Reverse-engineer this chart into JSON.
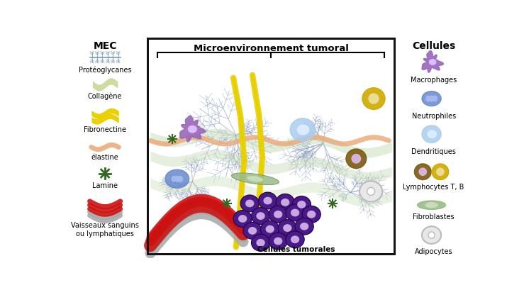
{
  "title": "Microenvironnement tumoral",
  "left_title": "MEC",
  "right_title": "Cellules",
  "left_labels": [
    "Protéoglycanes",
    "Collagène",
    "Fibronectine",
    "élastine",
    "Lamine",
    "Vaisseaux sanguins\nou lymphatiques"
  ],
  "right_labels": [
    "Macrophages",
    "Neutrophiles",
    "Dendritiques",
    "Lymphocytes T, B",
    "Fibroblastes",
    "Adipocytes"
  ],
  "center_label": "Cellules tumorales",
  "bg_color": "#ffffff",
  "proteoglycan_color": "#7799bb",
  "collagen_color": "#c8d898",
  "fibronectin_color": "#e8d000",
  "elastin_color": "#e8a878",
  "lamine_color": "#336622",
  "vessel_red": "#cc1111",
  "vessel_gray": "#999999",
  "dendrite_color": "#8899bb",
  "ribbon_color": "#c8ddb8",
  "salmon_color": "#e8a878",
  "macrophage_color": "#9966bb",
  "macrophage_nucleus": "#ddbbff",
  "neutrophil_color": "#6688cc",
  "neutrophil_nucleus": "#aabbee",
  "dendritic_color": "#aaccee",
  "dendritic_nucleus": "#ddeeff",
  "lymphT_color": "#7a5a10",
  "lymphT_nucleus": "#ddbbee",
  "lymphB_color": "#ccaa00",
  "lymphB_nucleus": "#f0e0a0",
  "fibro_color": "#99bb88",
  "fibro_nucleus": "#cce0bb",
  "adipo_color": "#e8e8e8",
  "tumor_color": "#4a1a88",
  "tumor_nucleus": "#c8a8e0"
}
